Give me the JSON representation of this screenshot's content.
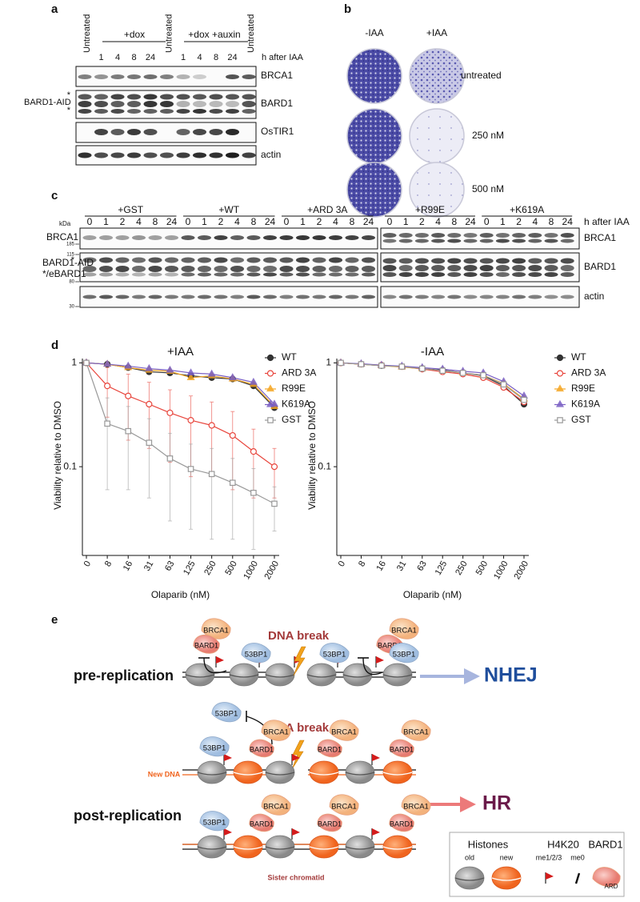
{
  "panels": {
    "a": {
      "label": "a",
      "untreated": "Untreated",
      "dox": "+dox",
      "dox_auxin": "+dox +auxin",
      "lanes": [
        "1",
        "4",
        "8",
        "24"
      ],
      "time_label": "h after IAA",
      "blots": [
        "BRCA1",
        "BARD1",
        "OsTIR1",
        "actin"
      ],
      "bard1_aid": "BARD1-AID",
      "asterisk": "*"
    },
    "b": {
      "label": "b",
      "columns": [
        "-IAA",
        "+IAA"
      ],
      "rows": [
        "untreated",
        "250 nM",
        "500 nM"
      ]
    },
    "c": {
      "label": "c",
      "groups": [
        "+GST",
        "+WT",
        "+ARD 3A",
        "+R99E",
        "+K619A"
      ],
      "lanes": [
        "0",
        "1",
        "2",
        "4",
        "8",
        "24"
      ],
      "kda": "kDa",
      "markers": [
        "185",
        "115",
        "80",
        "30"
      ],
      "time_label": "h after IAA",
      "left_labels": [
        "BRCA1",
        "BARD1-AID",
        "*/eBARD1"
      ],
      "right_labels": [
        "BRCA1",
        "BARD1",
        "actin"
      ],
      "asterisk": "*"
    },
    "d": {
      "label": "d"
    },
    "e": {
      "label": "e",
      "brca1": "BRCA1",
      "bard1": "BARD1",
      "p53bp1": "53BP1",
      "dna_break": "DNA break",
      "pre": "pre-replication",
      "post": "post-replication",
      "nhej": "NHEJ",
      "hr": "HR",
      "new_dna": "New DNA",
      "sister": "Sister chromatid",
      "legend": {
        "histones": "Histones",
        "old": "old",
        "new": "new",
        "h4k20": "H4K20",
        "me123": "me1/2/3",
        "me0": "me0",
        "bard1": "BARD1",
        "ard": "ARD"
      }
    }
  },
  "chart_data": [
    {
      "type": "line",
      "title": "+IAA",
      "x_label": "Olaparib (nM)",
      "y_label": "Viability relative to DMSO",
      "log_y": true,
      "categories": [
        "0",
        "8",
        "16",
        "31",
        "63",
        "125",
        "250",
        "500",
        "1000",
        "2000"
      ],
      "ylim": [
        0.015,
        1.1
      ],
      "yticks": [
        1,
        0.1
      ],
      "series": [
        {
          "name": "WT",
          "color": "#333333",
          "marker": "circle",
          "values": [
            1,
            0.97,
            0.9,
            0.82,
            0.8,
            0.75,
            0.72,
            0.7,
            0.6,
            0.37
          ]
        },
        {
          "name": "ARD 3A",
          "color": "#e8453c",
          "marker": "circle-open",
          "values": [
            1,
            0.6,
            0.48,
            0.4,
            0.33,
            0.28,
            0.25,
            0.2,
            0.14,
            0.1
          ],
          "errors": [
            0,
            0.3,
            0.3,
            0.25,
            0.22,
            0.2,
            0.17,
            0.14,
            0.09,
            0.05
          ]
        },
        {
          "name": "R99E",
          "color": "#f5a623",
          "marker": "triangle",
          "values": [
            1,
            0.97,
            0.9,
            0.85,
            0.83,
            0.72,
            0.75,
            0.7,
            0.62,
            0.38
          ]
        },
        {
          "name": "K619A",
          "color": "#7a5fc4",
          "marker": "triangle",
          "values": [
            1,
            0.97,
            0.93,
            0.88,
            0.85,
            0.8,
            0.78,
            0.72,
            0.65,
            0.4
          ]
        },
        {
          "name": "GST",
          "color": "#999999",
          "marker": "square",
          "values": [
            1,
            0.26,
            0.22,
            0.17,
            0.12,
            0.095,
            0.085,
            0.07,
            0.056,
            0.044
          ],
          "errors": [
            0,
            0.2,
            0.16,
            0.12,
            0.09,
            0.07,
            0.065,
            0.05,
            0.04,
            0.02
          ]
        }
      ]
    },
    {
      "type": "line",
      "title": "-IAA",
      "x_label": "Olaparib (nM)",
      "y_label": "Viability relative to DMSO",
      "log_y": true,
      "categories": [
        "0",
        "8",
        "16",
        "31",
        "63",
        "125",
        "250",
        "500",
        "1000",
        "2000"
      ],
      "ylim": [
        0.015,
        1.1
      ],
      "yticks": [
        1,
        0.1
      ],
      "series": [
        {
          "name": "WT",
          "color": "#333333",
          "marker": "circle",
          "values": [
            1,
            0.97,
            0.94,
            0.92,
            0.88,
            0.85,
            0.8,
            0.75,
            0.6,
            0.4
          ]
        },
        {
          "name": "ARD 3A",
          "color": "#e8453c",
          "marker": "circle-open",
          "values": [
            1,
            0.97,
            0.95,
            0.92,
            0.87,
            0.82,
            0.78,
            0.72,
            0.58,
            0.42
          ]
        },
        {
          "name": "R99E",
          "color": "#f5a623",
          "marker": "triangle",
          "values": [
            1,
            0.97,
            0.94,
            0.91,
            0.88,
            0.84,
            0.8,
            0.76,
            0.63,
            0.45
          ]
        },
        {
          "name": "K619A",
          "color": "#7a5fc4",
          "marker": "triangle",
          "values": [
            1,
            0.98,
            0.95,
            0.93,
            0.9,
            0.87,
            0.83,
            0.8,
            0.66,
            0.48
          ]
        },
        {
          "name": "GST",
          "color": "#999999",
          "marker": "square",
          "values": [
            1,
            0.97,
            0.94,
            0.92,
            0.88,
            0.84,
            0.8,
            0.76,
            0.62,
            0.44
          ]
        }
      ]
    }
  ]
}
